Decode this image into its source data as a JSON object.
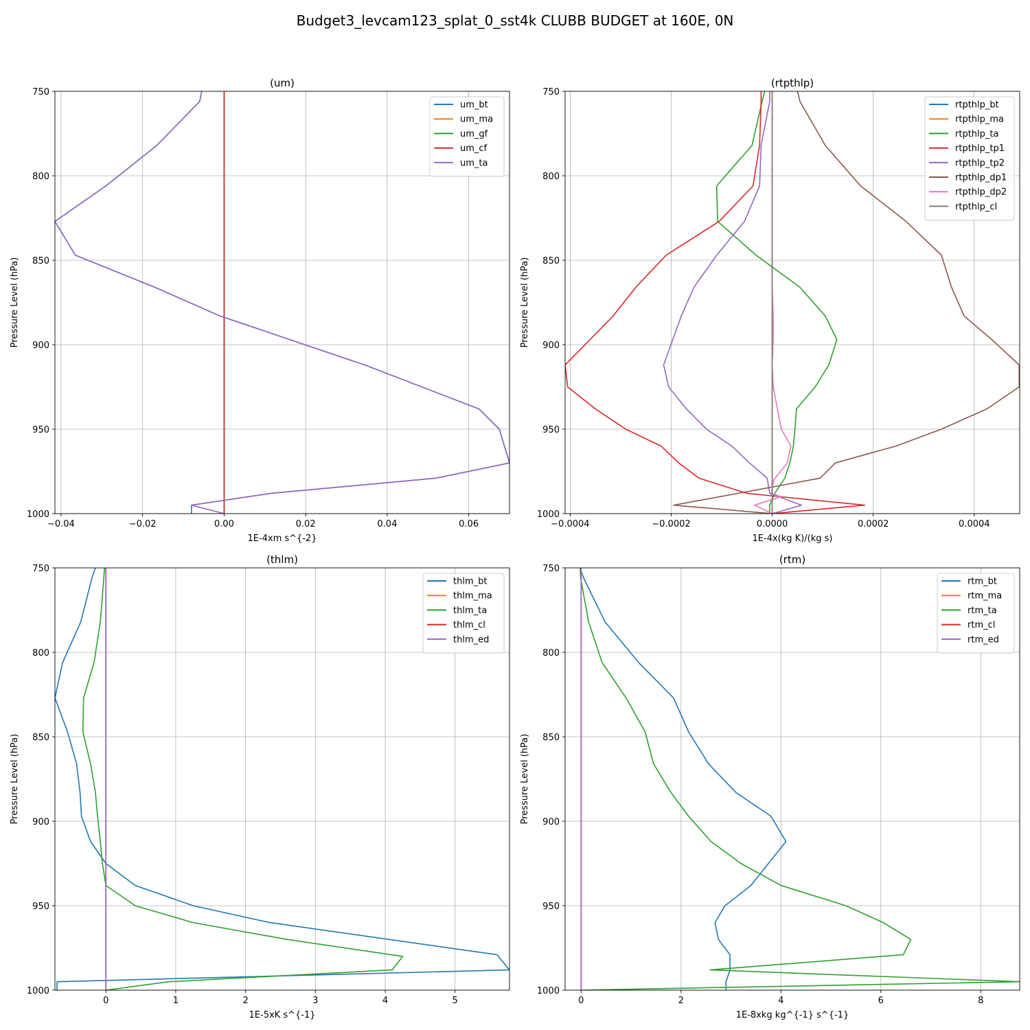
{
  "figure_title": "Budget3_levcam123_splat_0_sst4k CLUBB BUDGET at 160E, 0N",
  "colors": {
    "C0": "#1f77b4",
    "C1": "#ff7f0e",
    "C2": "#2ca02c",
    "C3": "#d62728",
    "C4": "#9467bd",
    "C5": "#8c564b",
    "C6": "#e377c2",
    "C7": "#7f7f7f"
  },
  "chart_data": [
    {
      "type": "line",
      "title": "(um)",
      "xlabel": "1E-4xm s^{-2}",
      "ylabel": "Pressure Level (hPa)",
      "xlim": [
        -0.0415,
        0.07
      ],
      "ylim": [
        1000,
        750
      ],
      "grid": true,
      "legend_position": "top-right",
      "xticks": [
        -0.04,
        -0.02,
        0.0,
        0.02,
        0.04,
        0.06
      ],
      "xtick_labels": [
        "−0.04",
        "−0.02",
        "0.00",
        "0.02",
        "0.04",
        "0.06"
      ],
      "yticks": [
        750,
        800,
        850,
        900,
        950,
        1000
      ],
      "ytick_labels": [
        "750",
        "800",
        "850",
        "900",
        "950",
        "1000"
      ],
      "series": [
        {
          "name": "um_bt",
          "color": "C0",
          "x": [
            -0.0055,
            -0.006,
            -0.0165,
            -0.029,
            -0.0415,
            -0.0365,
            -0.017,
            -0.001,
            0.0345,
            0.0625,
            0.0675,
            0.07,
            0.052,
            0.0115,
            -0.008,
            -0.008
          ],
          "y": [
            750,
            756,
            782,
            806,
            827,
            847,
            866,
            883,
            912,
            938,
            950,
            970,
            979,
            988,
            995,
            1000
          ]
        },
        {
          "name": "um_ma",
          "color": "C1",
          "x": [
            0,
            0
          ],
          "y": [
            750,
            1000
          ]
        },
        {
          "name": "um_gf",
          "color": "C2",
          "x": [
            0,
            0
          ],
          "y": [
            750,
            1000
          ]
        },
        {
          "name": "um_cf",
          "color": "C3",
          "x": [
            0,
            0
          ],
          "y": [
            750,
            1000
          ]
        },
        {
          "name": "um_ta",
          "color": "C4",
          "x": [
            -0.0055,
            -0.006,
            -0.0165,
            -0.029,
            -0.0415,
            -0.0365,
            -0.017,
            -0.001,
            0.0345,
            0.0625,
            0.0675,
            0.07,
            0.052,
            0.0115,
            -0.008,
            0.0
          ],
          "y": [
            750,
            756,
            782,
            806,
            827,
            847,
            866,
            883,
            912,
            938,
            950,
            970,
            979,
            988,
            995,
            1000
          ]
        }
      ]
    },
    {
      "type": "line",
      "title": "(rtpthlp)",
      "xlabel": "1E-4x(kg K)/(kg s)",
      "ylabel": "Pressure Level (hPa)",
      "xlim": [
        -0.00041,
        0.00049
      ],
      "ylim": [
        1000,
        750
      ],
      "grid": true,
      "legend_position": "top-right",
      "xticks": [
        -0.0004,
        -0.0002,
        0.0,
        0.0002,
        0.0004
      ],
      "xtick_labels": [
        "−0.0004",
        "−0.0002",
        "0.0000",
        "0.0002",
        "0.0004"
      ],
      "yticks": [
        750,
        800,
        850,
        900,
        950,
        1000
      ],
      "ytick_labels": [
        "750",
        "800",
        "850",
        "900",
        "950",
        "1000"
      ],
      "series": [
        {
          "name": "rtpthlp_bt",
          "color": "C0",
          "x": [
            0,
            0
          ],
          "y": [
            750,
            1000
          ]
        },
        {
          "name": "rtpthlp_ma",
          "color": "C1",
          "x": [
            0,
            0
          ],
          "y": [
            750,
            1000
          ]
        },
        {
          "name": "rtpthlp_ta",
          "color": "C2",
          "x": [
            -1.5e-05,
            -2e-05,
            -4e-05,
            -0.00011,
            -0.000108,
            -3.2e-05,
            5.5e-05,
            0.000105,
            0.000128,
            0.000112,
            8.5e-05,
            4.8e-05,
            4.5e-05,
            4.2e-05,
            3.5e-05,
            2.5e-05,
            5e-06,
            -5e-06,
            -5e-06
          ],
          "y": [
            750,
            756,
            782,
            806,
            827,
            847,
            866,
            883,
            897,
            912,
            925,
            938,
            950,
            960,
            970,
            979,
            988,
            995,
            1000
          ]
        },
        {
          "name": "rtpthlp_tp1",
          "color": "C3",
          "x": [
            -2.2e-05,
            -2.2e-05,
            -2.5e-05,
            -3.8e-05,
            -0.000105,
            -0.00021,
            -0.00027,
            -0.000315,
            -0.00041,
            -0.000405,
            -0.00035,
            -0.00029,
            -0.00022,
            -0.000185,
            -0.000145,
            -5e-05,
            0.000183,
            0.0
          ],
          "y": [
            750,
            756,
            782,
            806,
            827,
            847,
            866,
            883,
            912,
            925,
            938,
            950,
            960,
            970,
            979,
            988,
            995,
            1000
          ]
        },
        {
          "name": "rtpthlp_tp2",
          "color": "C4",
          "x": [
            -5e-06,
            -5e-06,
            -2.2e-05,
            -2.5e-05,
            -5.5e-05,
            -0.00011,
            -0.000155,
            -0.00018,
            -0.000215,
            -0.000205,
            -0.00017,
            -0.00013,
            -8e-05,
            -4.5e-05,
            -1e-05,
            -5e-06,
            5.8e-05,
            0.0
          ],
          "y": [
            750,
            756,
            782,
            806,
            827,
            847,
            866,
            883,
            912,
            925,
            938,
            950,
            960,
            970,
            979,
            988,
            995,
            1000
          ]
        },
        {
          "name": "rtpthlp_dp1",
          "color": "C5",
          "x": [
            5e-05,
            5.5e-05,
            0.000105,
            0.000175,
            0.000265,
            0.000335,
            0.000355,
            0.00038,
            0.000435,
            0.000489,
            0.000489,
            0.000425,
            0.000335,
            0.000245,
            0.000125,
            9.5e-05,
            -0.000195,
            0.0
          ],
          "y": [
            750,
            756,
            782,
            806,
            827,
            847,
            866,
            883,
            897,
            912,
            925,
            938,
            950,
            960,
            970,
            979,
            995,
            1000
          ]
        },
        {
          "name": "rtpthlp_dp2",
          "color": "C6",
          "x": [
            0.0,
            0.0,
            0.0,
            0.0,
            0.0,
            2e-06,
            2e-06,
            0.0,
            2e-06,
            1.8e-05,
            3.7e-05,
            3e-05,
            3e-06,
            -2e-06,
            1.8e-05,
            -3.5e-05,
            0.0
          ],
          "y": [
            750,
            800,
            827,
            847,
            866,
            883,
            897,
            912,
            925,
            950,
            960,
            970,
            980,
            988,
            990,
            995,
            1000
          ]
        },
        {
          "name": "rtpthlp_cl",
          "color": "C7",
          "x": [
            0,
            0
          ],
          "y": [
            750,
            1000
          ]
        }
      ]
    },
    {
      "type": "line",
      "title": "(thlm)",
      "xlabel": "1E-5xK s^{-1}",
      "ylabel": "Pressure Level (hPa)",
      "xlim": [
        -0.73,
        5.78
      ],
      "ylim": [
        1000,
        750
      ],
      "grid": true,
      "legend_position": "top-right",
      "xticks": [
        0,
        1,
        2,
        3,
        4,
        5
      ],
      "xtick_labels": [
        "0",
        "1",
        "2",
        "3",
        "4",
        "5"
      ],
      "yticks": [
        750,
        800,
        850,
        900,
        950,
        1000
      ],
      "ytick_labels": [
        "750",
        "800",
        "850",
        "900",
        "950",
        "1000"
      ],
      "series": [
        {
          "name": "thlm_bt",
          "color": "C0",
          "x": [
            -0.15,
            -0.2,
            -0.36,
            -0.62,
            -0.73,
            -0.55,
            -0.42,
            -0.37,
            -0.35,
            -0.22,
            0.0,
            0.42,
            1.25,
            2.35,
            5.6,
            5.78,
            -0.7,
            -0.7
          ],
          "y": [
            750,
            756,
            782,
            806,
            827,
            847,
            866,
            883,
            897,
            912,
            925,
            938,
            950,
            960,
            979,
            988,
            995,
            1000
          ]
        },
        {
          "name": "thlm_ma",
          "color": "C1",
          "x": [
            0,
            0
          ],
          "y": [
            750,
            1000
          ]
        },
        {
          "name": "thlm_ta",
          "color": "C2",
          "x": [
            -0.02,
            -0.03,
            -0.08,
            -0.17,
            -0.32,
            -0.33,
            -0.22,
            -0.15,
            -0.12,
            -0.08,
            -0.05,
            0.0,
            0.42,
            1.25,
            2.6,
            4.25,
            4.1,
            0.9,
            0.0
          ],
          "y": [
            750,
            756,
            782,
            806,
            827,
            847,
            866,
            883,
            897,
            912,
            925,
            938,
            950,
            960,
            970,
            980,
            988,
            995,
            1000
          ]
        },
        {
          "name": "thlm_cl",
          "color": "C3",
          "x": [
            0,
            0
          ],
          "y": [
            750,
            1000
          ]
        },
        {
          "name": "thlm_ed",
          "color": "C4",
          "x": [
            0,
            0
          ],
          "y": [
            750,
            1000
          ]
        }
      ]
    },
    {
      "type": "line",
      "title": "(rtm)",
      "xlabel": "1E-8xkg kg^{-1} s^{-1}",
      "ylabel": "Pressure Level (hPa)",
      "xlim": [
        -0.32,
        8.78
      ],
      "ylim": [
        1000,
        750
      ],
      "grid": true,
      "legend_position": "top-right",
      "xticks": [
        0,
        2,
        4,
        6,
        8
      ],
      "xtick_labels": [
        "0",
        "2",
        "4",
        "6",
        "8"
      ],
      "yticks": [
        750,
        800,
        850,
        900,
        950,
        1000
      ],
      "ytick_labels": [
        "750",
        "800",
        "850",
        "900",
        "950",
        "1000"
      ],
      "series": [
        {
          "name": "rtm_bt",
          "color": "C0",
          "x": [
            -0.02,
            0.05,
            0.48,
            1.15,
            1.85,
            2.15,
            2.55,
            3.1,
            3.8,
            4.1,
            3.4,
            2.88,
            2.68,
            2.75,
            2.98,
            2.98,
            2.9,
            2.9
          ],
          "y": [
            750,
            756,
            782,
            806,
            827,
            847,
            866,
            883,
            897,
            912,
            938,
            950,
            960,
            970,
            979,
            988,
            995,
            1000
          ]
        },
        {
          "name": "rtm_ma",
          "color": "C1",
          "x": [
            0,
            0
          ],
          "y": [
            750,
            1000
          ]
        },
        {
          "name": "rtm_ta",
          "color": "C2",
          "x": [
            -0.02,
            -0.01,
            0.15,
            0.42,
            0.9,
            1.28,
            1.45,
            1.8,
            2.15,
            2.6,
            3.2,
            4.0,
            5.3,
            6.05,
            6.6,
            6.45,
            2.58,
            8.78,
            0.0
          ],
          "y": [
            750,
            756,
            782,
            806,
            827,
            847,
            866,
            883,
            897,
            912,
            925,
            938,
            950,
            960,
            970,
            979,
            988,
            995,
            1000
          ]
        },
        {
          "name": "rtm_cl",
          "color": "C3",
          "x": [
            0,
            0
          ],
          "y": [
            750,
            1000
          ]
        },
        {
          "name": "rtm_ed",
          "color": "C4",
          "x": [
            0,
            0
          ],
          "y": [
            750,
            1000
          ]
        }
      ]
    }
  ]
}
